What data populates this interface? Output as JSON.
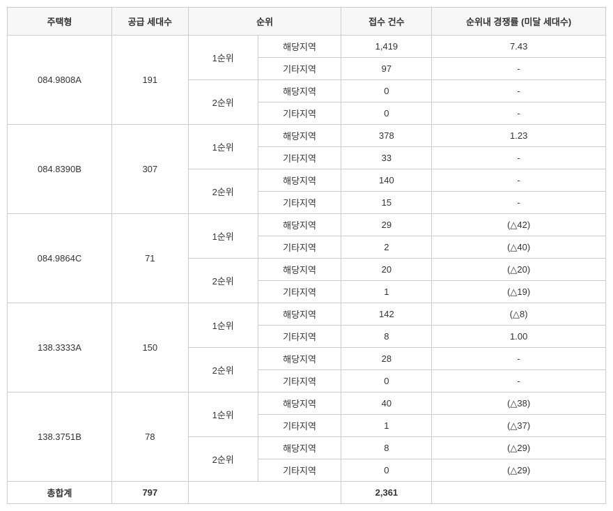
{
  "table": {
    "type": "table",
    "background_color": "#ffffff",
    "border_color": "#cccccc",
    "header_bg": "#f7f7f7",
    "text_color": "#333333",
    "font_size": 13,
    "columns": {
      "housing_type": "주택형",
      "supply_units": "공급 세대수",
      "rank": "순위",
      "applications": "접수 건수",
      "competition": "순위내 경쟁률 (미달 세대수)"
    },
    "rank_labels": {
      "rank1": "1순위",
      "rank2": "2순위",
      "region_local": "해당지역",
      "region_other": "기타지역"
    },
    "groups": [
      {
        "type_name": "084.9808A",
        "supply": "191",
        "rows": [
          {
            "apps": "1,419",
            "ratio": "7.43"
          },
          {
            "apps": "97",
            "ratio": "-"
          },
          {
            "apps": "0",
            "ratio": "-"
          },
          {
            "apps": "0",
            "ratio": "-"
          }
        ]
      },
      {
        "type_name": "084.8390B",
        "supply": "307",
        "rows": [
          {
            "apps": "378",
            "ratio": "1.23"
          },
          {
            "apps": "33",
            "ratio": "-"
          },
          {
            "apps": "140",
            "ratio": "-"
          },
          {
            "apps": "15",
            "ratio": "-"
          }
        ]
      },
      {
        "type_name": "084.9864C",
        "supply": "71",
        "rows": [
          {
            "apps": "29",
            "ratio": "(△42)"
          },
          {
            "apps": "2",
            "ratio": "(△40)"
          },
          {
            "apps": "20",
            "ratio": "(△20)"
          },
          {
            "apps": "1",
            "ratio": "(△19)"
          }
        ]
      },
      {
        "type_name": "138.3333A",
        "supply": "150",
        "rows": [
          {
            "apps": "142",
            "ratio": "(△8)"
          },
          {
            "apps": "8",
            "ratio": "1.00"
          },
          {
            "apps": "28",
            "ratio": "-"
          },
          {
            "apps": "0",
            "ratio": "-"
          }
        ]
      },
      {
        "type_name": "138.3751B",
        "supply": "78",
        "rows": [
          {
            "apps": "40",
            "ratio": "(△38)"
          },
          {
            "apps": "1",
            "ratio": "(△37)"
          },
          {
            "apps": "8",
            "ratio": "(△29)"
          },
          {
            "apps": "0",
            "ratio": "(△29)"
          }
        ]
      }
    ],
    "footer": {
      "label": "총합계",
      "supply_total": "797",
      "apps_total": "2,361"
    }
  }
}
